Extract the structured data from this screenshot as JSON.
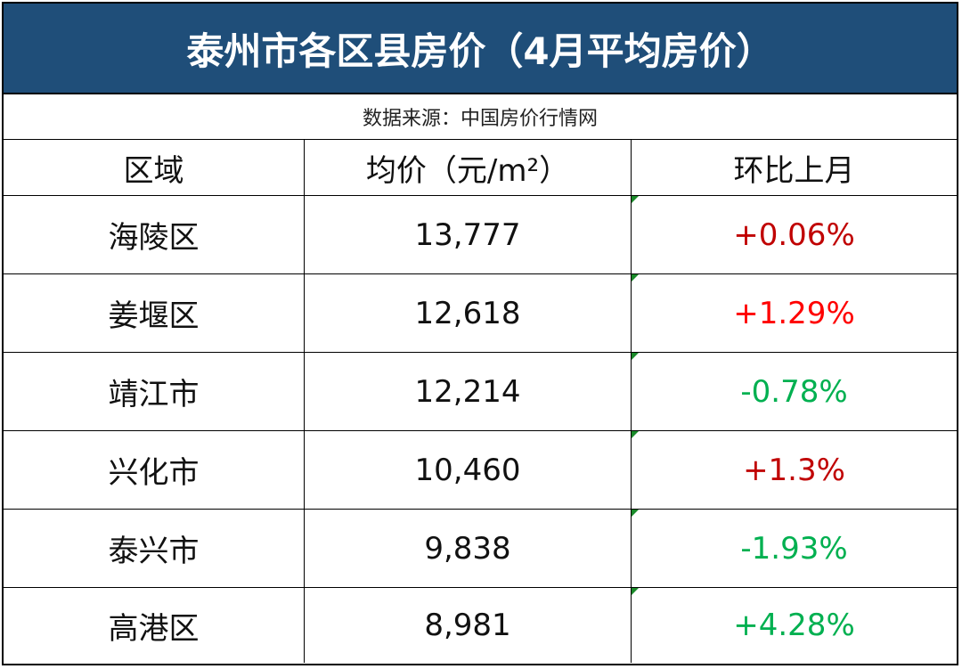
{
  "header": {
    "title": "泰州市各区县房价（4月平均房价）",
    "source": "数据来源：中国房价行情网"
  },
  "table": {
    "columns": [
      "区域",
      "均价（元/m²）",
      "环比上月"
    ],
    "rows": [
      [
        "海陵区",
        "13,777",
        "+0.06%"
      ],
      [
        "姜堰区",
        "12,618",
        "+1.29%"
      ],
      [
        "靖江市",
        "12,214",
        "-0.78%"
      ],
      [
        "兴化市",
        "10,460",
        "+1.3%"
      ],
      [
        "泰兴市",
        "9,838",
        "-1.93%"
      ],
      [
        "高港区",
        "8,981",
        "+4.28%"
      ]
    ],
    "change_colors": [
      "#c00000",
      "#ff0000",
      "#00b050",
      "#c00000",
      "#00b050",
      "#00b050"
    ]
  }
}
